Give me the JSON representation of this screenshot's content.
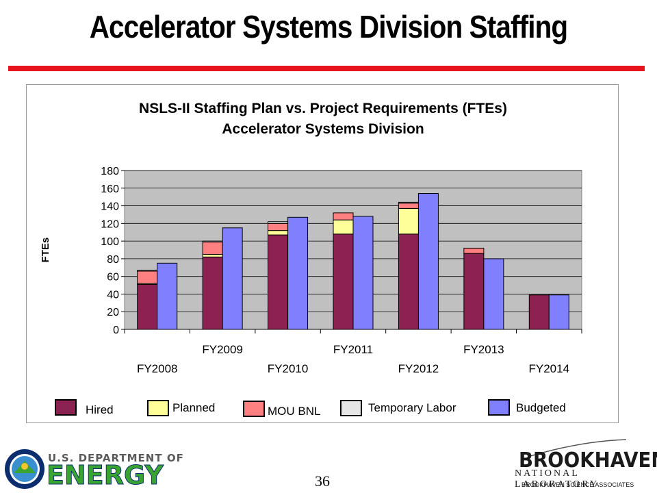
{
  "slide": {
    "title": "Accelerator Systems Division Staffing",
    "page_number": "36",
    "doe_logo_top": "U.S. DEPARTMENT OF",
    "doe_logo_main": "ENERGY",
    "bnl_name": "BROOKHAVEN",
    "bnl_sub": "NATIONAL LABORATORY",
    "bnl_assoc": "BROOKHAVEN SCIENCE ASSOCIATES",
    "accent_color": "#e8141c"
  },
  "chart_data": {
    "type": "bar",
    "title": "NSLS-II Staffing Plan vs. Project Requirements (FTEs)",
    "subtitle": "Accelerator Systems Division",
    "ylabel": "FTEs",
    "xlabel": "",
    "ylim": [
      0,
      180
    ],
    "yticks": [
      0,
      20,
      40,
      60,
      80,
      100,
      120,
      140,
      160,
      180
    ],
    "grid": true,
    "legend_position": "bottom",
    "categories_upper": [
      "FY2009",
      "FY2011",
      "FY2013"
    ],
    "categories_lower": [
      "FY2008",
      "FY2010",
      "FY2012",
      "FY2014"
    ],
    "categories": [
      "FY2008",
      "FY2009",
      "FY2010",
      "FY2011",
      "FY2012",
      "FY2013",
      "FY2014"
    ],
    "series": [
      {
        "name": "Hired",
        "stack": "plan",
        "color": "#8b2252",
        "values": [
          51,
          82,
          107,
          108,
          108,
          86,
          39
        ]
      },
      {
        "name": "Planned",
        "stack": "plan",
        "color": "#ffff99",
        "values": [
          1,
          3,
          5,
          16,
          29,
          0,
          0
        ]
      },
      {
        "name": "MOU BNL",
        "stack": "plan",
        "color": "#ff8080",
        "values": [
          14,
          14,
          8,
          8,
          6,
          6,
          0
        ]
      },
      {
        "name": "Temporary Labor",
        "stack": "plan",
        "color": "#e6e6e6",
        "values": [
          1,
          1,
          2,
          0,
          1,
          0,
          0
        ]
      },
      {
        "name": "Budgeted",
        "stack": "budget",
        "color": "#8080ff",
        "values": [
          75,
          115,
          127,
          128,
          154,
          80,
          39
        ]
      }
    ]
  }
}
